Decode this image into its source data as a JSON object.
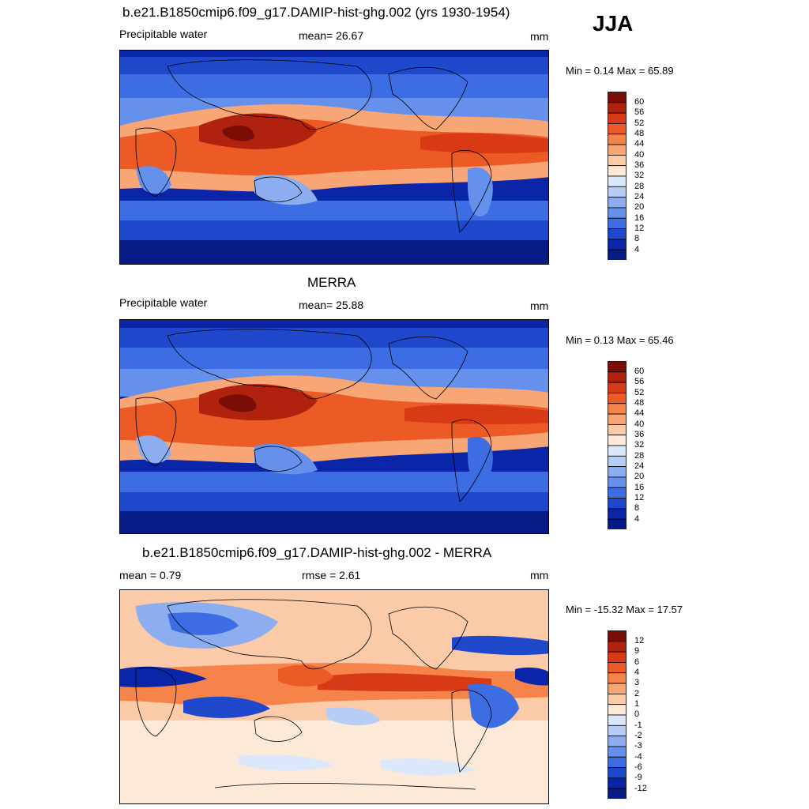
{
  "season": "JJA",
  "panels": [
    {
      "id": "model",
      "title": "b.e21.B1850cmip6.f09_g17.DAMIP-hist-ghg.002 (yrs 1930-1954)",
      "left_label": "Precipitable water",
      "center_label": "mean=  26.67",
      "units": "mm",
      "minmax": "Min =   0.14 Max =  65.89",
      "colorbar": {
        "labels": [
          "60",
          "56",
          "52",
          "48",
          "44",
          "40",
          "36",
          "32",
          "28",
          "24",
          "20",
          "16",
          "12",
          "8",
          "4"
        ],
        "colors": [
          "#7a0d06",
          "#b0220e",
          "#d83a16",
          "#ec5a25",
          "#f5834a",
          "#f9a676",
          "#fbcaa8",
          "#fde9d8",
          "#dbe8fb",
          "#b5cdf7",
          "#8cadf0",
          "#6590ec",
          "#3d6de2",
          "#1f48cc",
          "#0a25a8",
          "#061b86"
        ]
      }
    },
    {
      "id": "obs",
      "title": "MERRA",
      "left_label": "Precipitable water",
      "center_label": "mean=  25.88",
      "units": "mm",
      "minmax": "Min =   0.13 Max =  65.46",
      "colorbar": {
        "labels": [
          "60",
          "56",
          "52",
          "48",
          "44",
          "40",
          "36",
          "32",
          "28",
          "24",
          "20",
          "16",
          "12",
          "8",
          "4"
        ],
        "colors": [
          "#7a0d06",
          "#b0220e",
          "#d83a16",
          "#ec5a25",
          "#f5834a",
          "#f9a676",
          "#fbcaa8",
          "#fde9d8",
          "#dbe8fb",
          "#b5cdf7",
          "#8cadf0",
          "#6590ec",
          "#3d6de2",
          "#1f48cc",
          "#0a25a8",
          "#061b86"
        ]
      }
    },
    {
      "id": "diff",
      "title": "b.e21.B1850cmip6.f09_g17.DAMIP-hist-ghg.002 - MERRA",
      "left_label": "mean =   0.79",
      "center_label": "rmse =   2.61",
      "units": "mm",
      "minmax": "Min = -15.32 Max =  17.57",
      "colorbar": {
        "labels": [
          "12",
          "9",
          "6",
          "4",
          "3",
          "2",
          "1",
          "0",
          "-1",
          "-2",
          "-3",
          "-4",
          "-6",
          "-9",
          "-12"
        ],
        "colors": [
          "#7a0d06",
          "#b0220e",
          "#d83a16",
          "#ec5a25",
          "#f5834a",
          "#f9a676",
          "#fbcaa8",
          "#fde9d8",
          "#dbe8fb",
          "#b5cdf7",
          "#8cadf0",
          "#6590ec",
          "#3d6de2",
          "#1f48cc",
          "#0a25a8",
          "#061b86"
        ]
      }
    }
  ]
}
